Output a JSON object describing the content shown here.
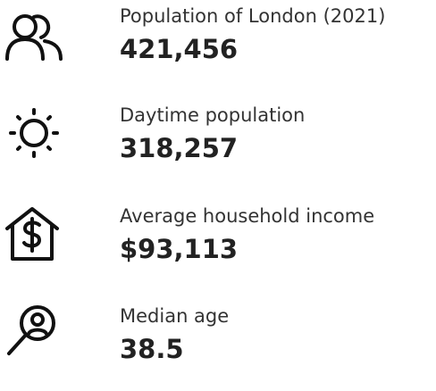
{
  "items": [
    {
      "label": "Population of London (2021)",
      "value": "421,456"
    },
    {
      "label": "Daytime population",
      "value": "318,257"
    },
    {
      "label": "Average household income",
      "value": "$93,113"
    },
    {
      "label": "Median age",
      "value": "38.5"
    }
  ]
}
